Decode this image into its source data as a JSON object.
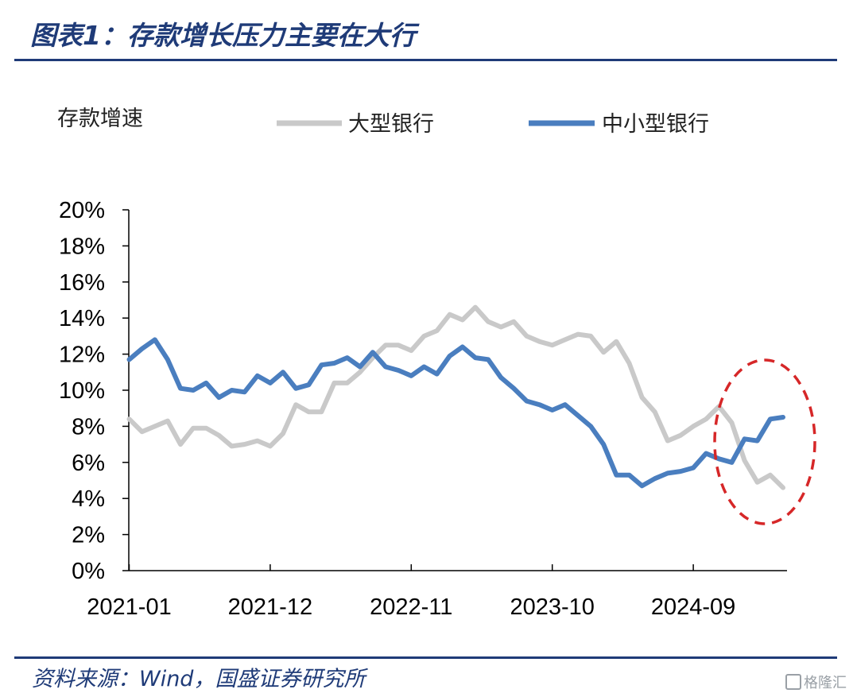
{
  "figure": {
    "title": "图表1：存款增长压力主要在大行",
    "source": "资料来源：Wind，国盛证券研究所",
    "watermark": "格隆汇"
  },
  "chart_data": {
    "type": "line",
    "ylabel": "存款增速",
    "yticks": [
      "0%",
      "2%",
      "4%",
      "6%",
      "8%",
      "10%",
      "12%",
      "14%",
      "16%",
      "18%",
      "20%"
    ],
    "ylim": [
      0,
      20
    ],
    "xticks": [
      "2021-01",
      "2021-12",
      "2022-11",
      "2023-10",
      "2024-09"
    ],
    "legend_position": "top",
    "x_start": "2021-01",
    "series": [
      {
        "name": "大型银行",
        "color": "#c9c9c9",
        "values": [
          8.4,
          7.7,
          8.0,
          8.3,
          7.0,
          7.9,
          7.9,
          7.5,
          6.9,
          7.0,
          7.2,
          6.9,
          7.6,
          9.2,
          8.8,
          8.8,
          10.4,
          10.4,
          11.0,
          11.8,
          12.5,
          12.5,
          12.2,
          13.0,
          13.3,
          14.2,
          13.9,
          14.6,
          13.8,
          13.5,
          13.8,
          13.0,
          12.7,
          12.5,
          12.8,
          13.1,
          13.0,
          12.1,
          12.7,
          11.5,
          9.6,
          8.8,
          7.2,
          7.5,
          8.0,
          8.4,
          9.1,
          8.2,
          6.1,
          4.9,
          5.3,
          4.6
        ]
      },
      {
        "name": "中小型银行",
        "color": "#4a7ebf",
        "values": [
          11.7,
          12.3,
          12.8,
          11.7,
          10.1,
          10.0,
          10.4,
          9.6,
          10.0,
          9.9,
          10.8,
          10.4,
          11.0,
          10.1,
          10.3,
          11.4,
          11.5,
          11.8,
          11.3,
          12.1,
          11.3,
          11.1,
          10.8,
          11.3,
          10.9,
          11.9,
          12.4,
          11.8,
          11.7,
          10.7,
          10.1,
          9.4,
          9.2,
          8.9,
          9.2,
          8.6,
          8.0,
          7.0,
          5.3,
          5.3,
          4.7,
          5.1,
          5.4,
          5.5,
          5.7,
          6.5,
          6.2,
          6.0,
          7.3,
          7.2,
          8.4,
          8.5
        ]
      }
    ],
    "annotations": [
      {
        "type": "dashed-ellipse",
        "color": "#d62728"
      }
    ]
  }
}
